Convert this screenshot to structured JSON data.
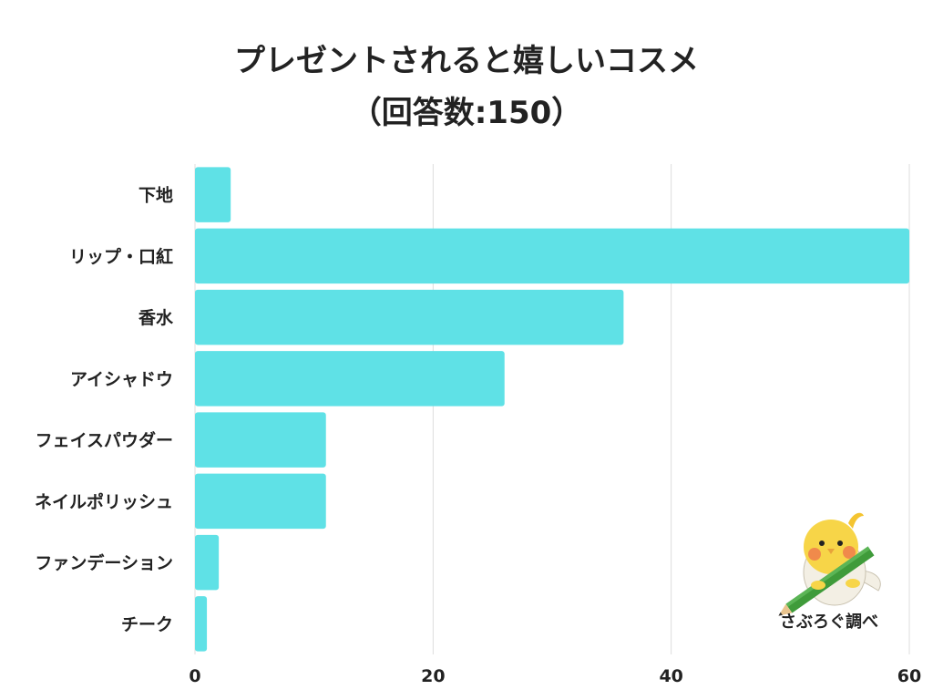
{
  "title": {
    "line1": "プレゼントされると嬉しいコスメ",
    "line2": "（回答数:150）"
  },
  "credit": "さぶろぐ調べ",
  "colors": {
    "bar": "#5fe1e6",
    "grid": "#dddddd",
    "text": "#222222"
  },
  "chart_data": {
    "type": "bar",
    "orientation": "horizontal",
    "categories": [
      "下地",
      "リップ・口紅",
      "香水",
      "アイシャドウ",
      "フェイスパウダー",
      "ネイルポリッシュ",
      "ファンデーション",
      "チーク"
    ],
    "values": [
      3,
      60,
      36,
      26,
      11,
      11,
      2,
      1
    ],
    "xlim": [
      0,
      60
    ],
    "xticks": [
      0,
      20,
      40,
      60
    ],
    "grid": true
  }
}
